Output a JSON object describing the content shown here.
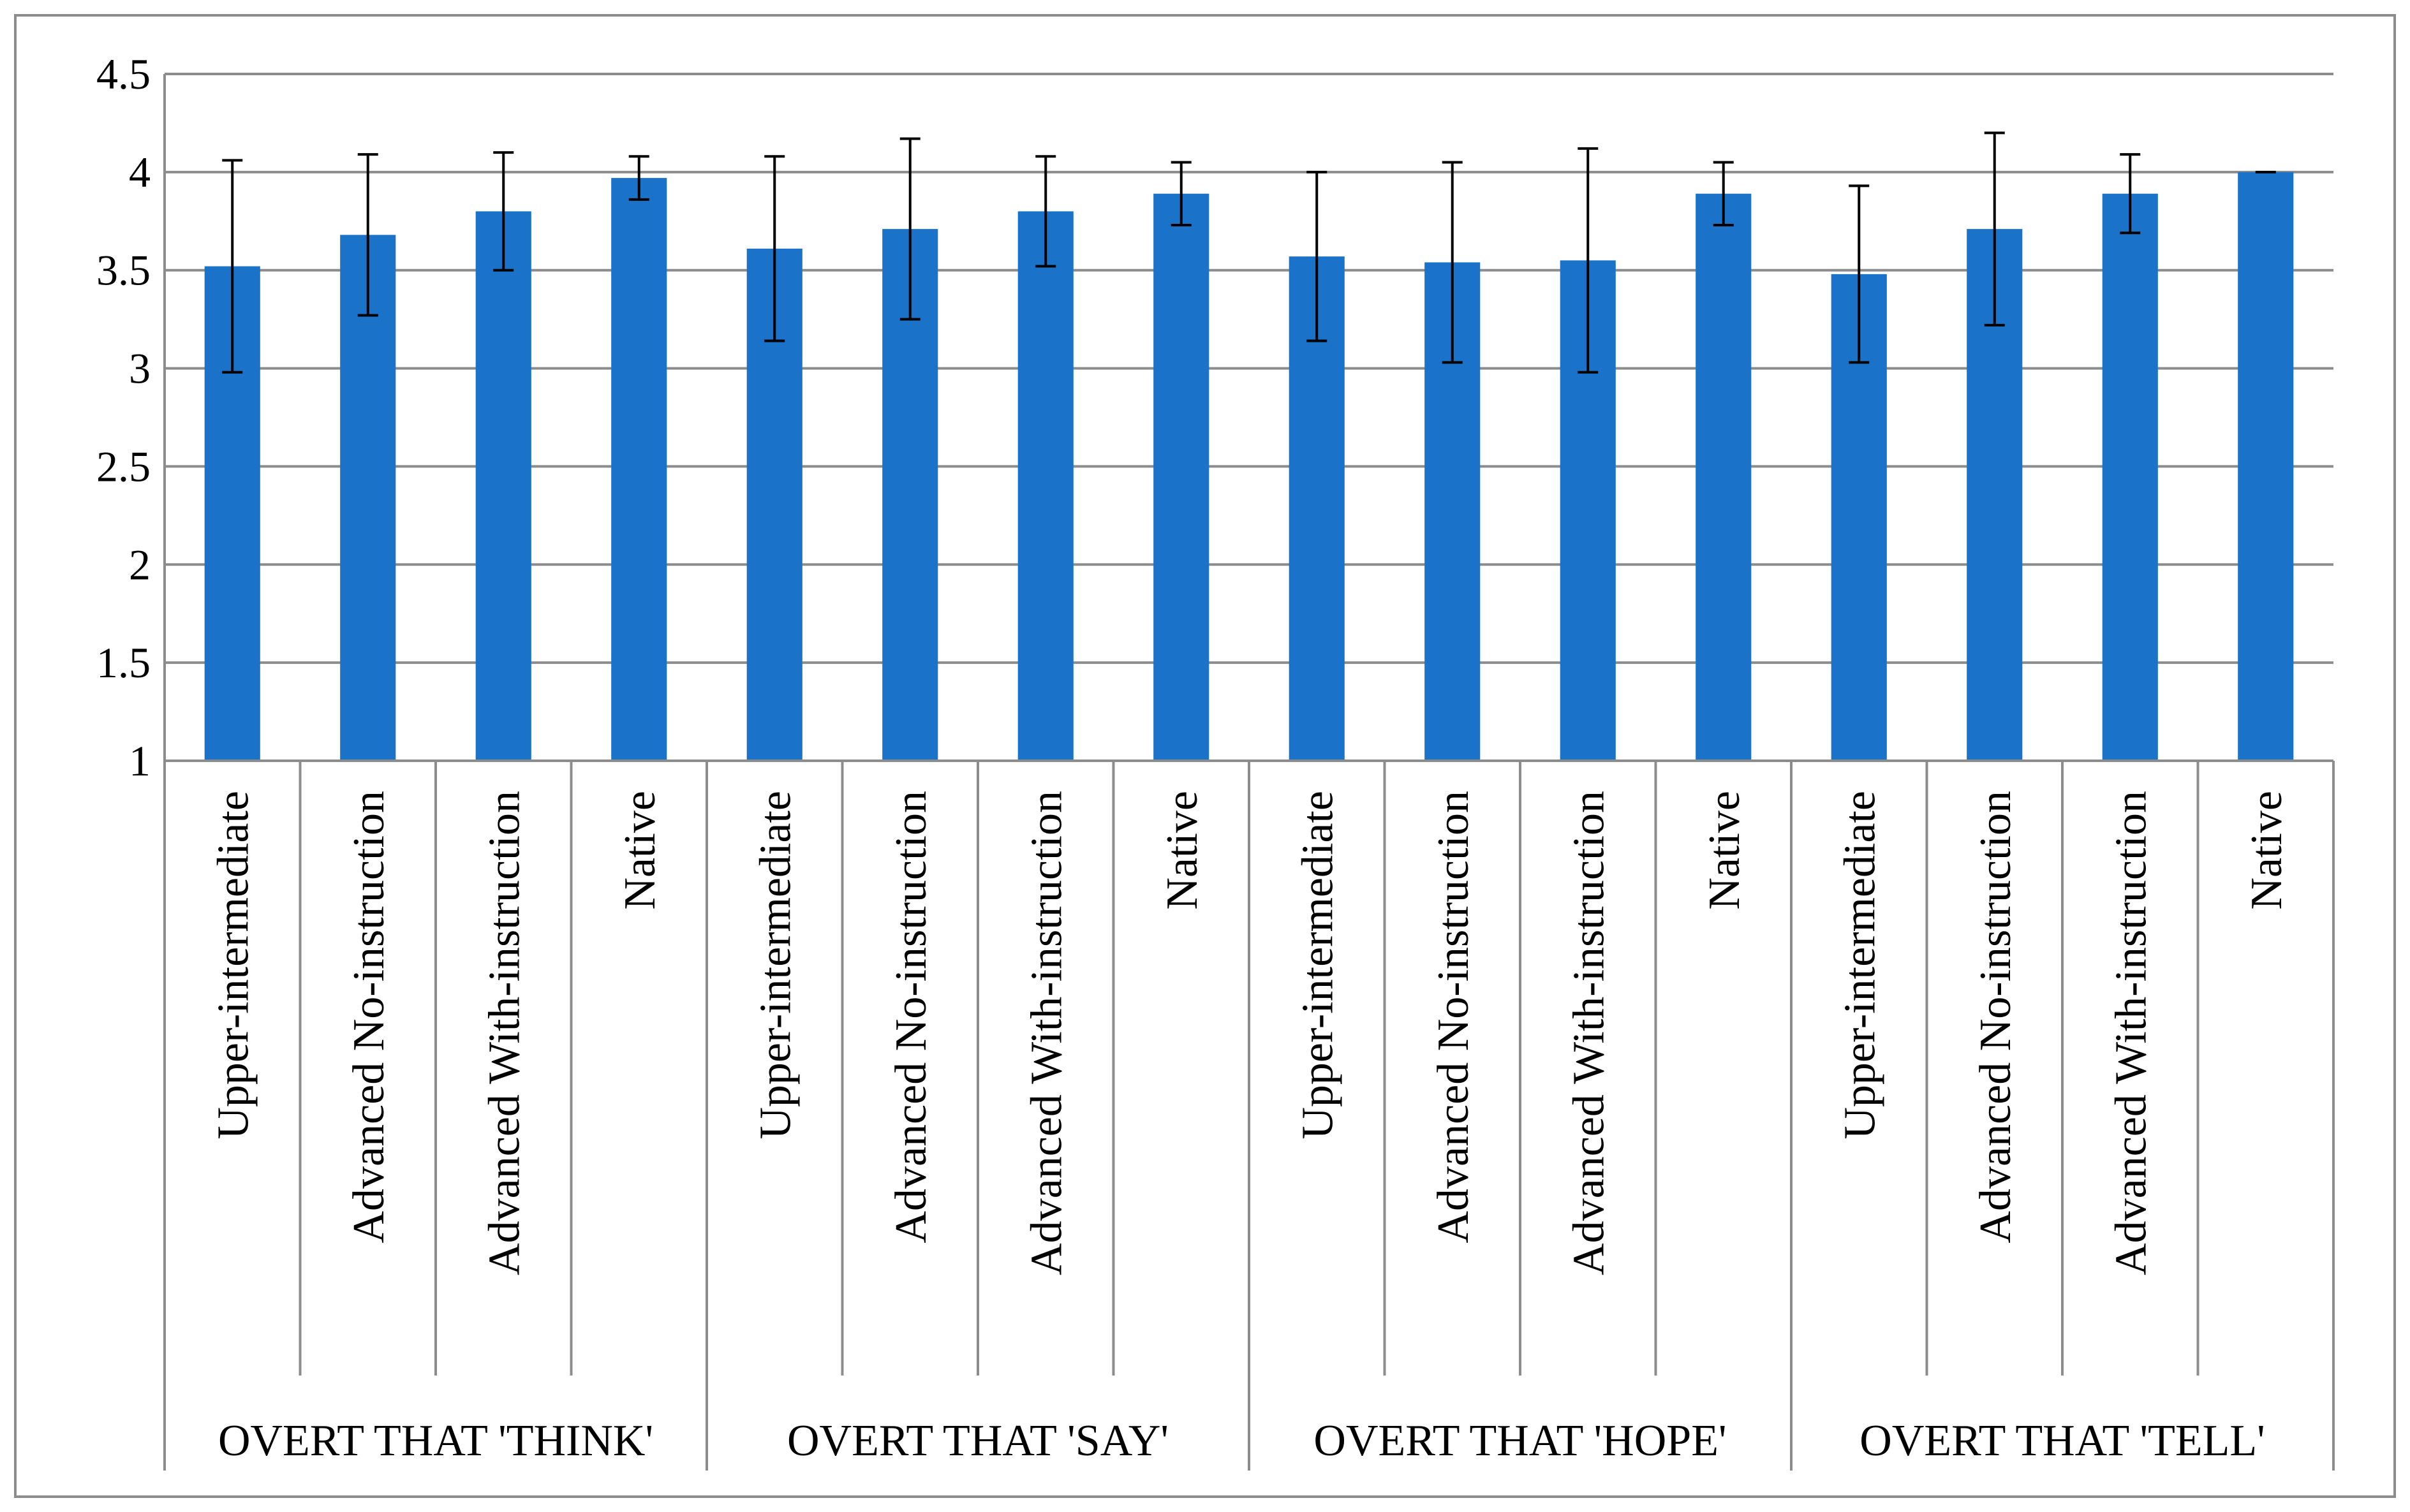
{
  "chart_data": {
    "type": "bar",
    "ylim": [
      1,
      4.5
    ],
    "yticks": [
      "1",
      "1.5",
      "2",
      "2.5",
      "3",
      "3.5",
      "4",
      "4.5"
    ],
    "ytick_values": [
      1,
      1.5,
      2,
      2.5,
      3,
      3.5,
      4,
      4.5
    ],
    "grid": true,
    "bar_color": "#1a73c8",
    "groups": [
      {
        "label": "OVERT THAT 'THINK'",
        "categories": [
          "Upper-intermediate",
          "Advanced No-instruction",
          "Advanced With-instruction",
          "Native"
        ],
        "values": [
          3.52,
          3.68,
          3.8,
          3.97
        ],
        "errors": [
          0.54,
          0.41,
          0.3,
          0.11
        ]
      },
      {
        "label": "OVERT THAT 'SAY'",
        "categories": [
          "Upper-intermediate",
          "Advanced No-instruction",
          "Advanced With-instruction",
          "Native"
        ],
        "values": [
          3.61,
          3.71,
          3.8,
          3.89
        ],
        "errors": [
          0.47,
          0.46,
          0.28,
          0.16
        ]
      },
      {
        "label": "OVERT THAT 'HOPE'",
        "categories": [
          "Upper-intermediate",
          "Advanced No-instruction",
          "Advanced With-instruction",
          "Native"
        ],
        "values": [
          3.57,
          3.54,
          3.55,
          3.89
        ],
        "errors": [
          0.43,
          0.51,
          0.57,
          0.16
        ]
      },
      {
        "label": "OVERT THAT 'TELL'",
        "categories": [
          "Upper-intermediate",
          "Advanced No-instruction",
          "Advanced With-instruction",
          "Native"
        ],
        "values": [
          3.48,
          3.71,
          3.89,
          4.0
        ],
        "errors": [
          0.45,
          0.49,
          0.2,
          0.0
        ]
      }
    ]
  }
}
